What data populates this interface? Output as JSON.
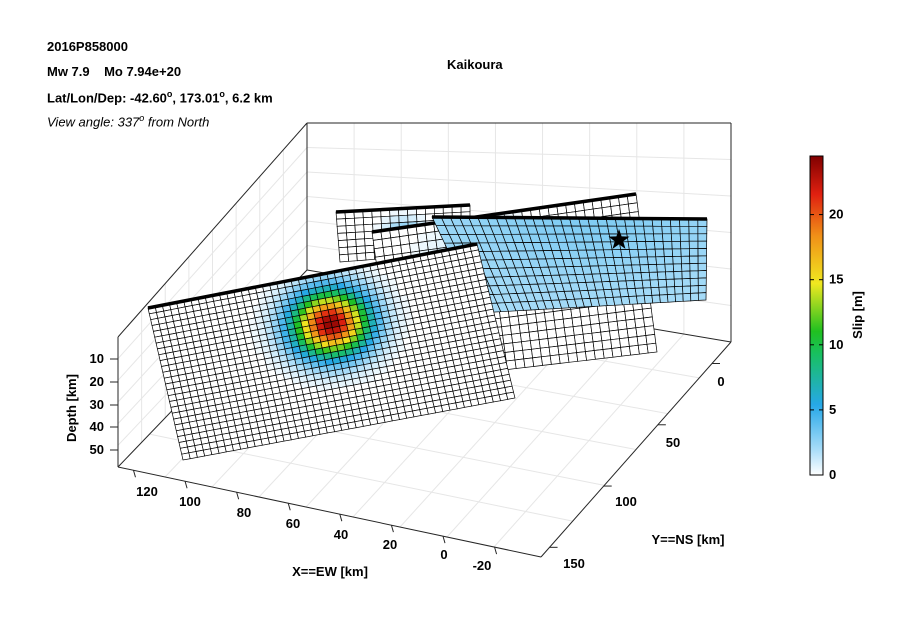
{
  "header": {
    "event_id": "2016P858000",
    "mw_label": "Mw 7.9",
    "mo_label": "Mo 7.94e+20",
    "lat_lon_dep_prefix": "Lat/Lon/Dep: ",
    "lat": "-42.60",
    "lon": "173.01",
    "dep": "6.2 km",
    "degree_mark": "o",
    "view_prefix": "View angle: ",
    "view_value": "337",
    "view_suffix": " from North"
  },
  "chart_data": {
    "type": "3d-fault-slip",
    "title": "Kaikoura",
    "xlabel": "X==EW [km]",
    "ylabel": "Y==NS [km]",
    "zlabel": "Depth [km]",
    "colorbar_label": "Slip [m]",
    "x_ticks": [
      "120",
      "100",
      "80",
      "60",
      "40",
      "20",
      "0",
      "-20"
    ],
    "y_ticks": [
      "0",
      "50",
      "100",
      "150"
    ],
    "z_ticks": [
      "10",
      "20",
      "30",
      "40",
      "50"
    ],
    "colorbar_ticks": [
      "0",
      "5",
      "10",
      "15",
      "20"
    ],
    "colorbar_range": [
      0,
      24.5
    ],
    "colormap": "jet-white",
    "grid": true,
    "hypocenter_marker": "star",
    "segments": [
      {
        "name": "",
        "peak_slip": 24,
        "peak_position": [
          0.52,
          0.32
        ]
      },
      {
        "name": "",
        "peak_slip": 3,
        "peak_position": [
          0.55,
          0.05
        ]
      },
      {
        "name": "",
        "peak_slip": 1.5,
        "peak_position": [
          0.4,
          0.3
        ]
      },
      {
        "name": "",
        "peak_slip": 3,
        "peak_position": [
          0.5,
          0.5
        ]
      }
    ]
  }
}
